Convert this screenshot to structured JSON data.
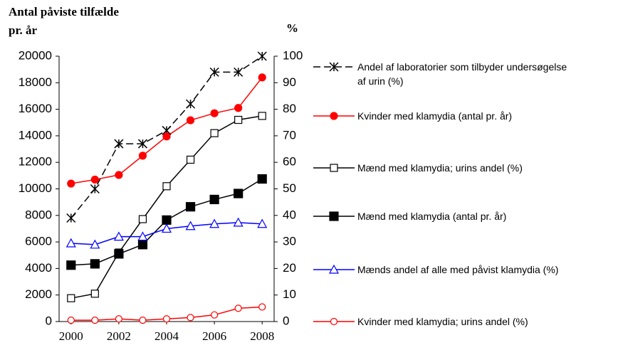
{
  "chart_data": {
    "type": "line",
    "title": "Antal påviste tilfælde pr. år",
    "y2_label": "%",
    "x": [
      2000,
      2001,
      2002,
      2003,
      2004,
      2005,
      2006,
      2007,
      2008
    ],
    "xlim": [
      1999.5,
      2008.5
    ],
    "xticks": [
      2000,
      2002,
      2004,
      2006,
      2008
    ],
    "ylim": [
      0,
      20000
    ],
    "yticks": [
      0,
      2000,
      4000,
      6000,
      8000,
      10000,
      12000,
      14000,
      16000,
      18000,
      20000
    ],
    "y2lim": [
      0,
      100
    ],
    "y2ticks": [
      0,
      10,
      20,
      30,
      40,
      50,
      60,
      70,
      80,
      90,
      100
    ],
    "grid": false,
    "series": [
      {
        "name": "Andel af laboratorier som tilbyder undersøgelse af urin (%)",
        "color": "#000000",
        "marker": "asterisk",
        "dashed": true,
        "axis": "y2",
        "values": [
          39,
          50,
          67,
          67,
          72,
          82,
          94,
          94,
          100
        ]
      },
      {
        "name": "Kvinder med klamydia (antal pr. år)",
        "color": "#ff0000",
        "marker": "filled-circle",
        "dashed": false,
        "values": [
          10400,
          10700,
          11050,
          12500,
          13950,
          15170,
          15700,
          16100,
          18400
        ]
      },
      {
        "name": "Mænd med klamydia; urins andel (%)",
        "color": "#000000",
        "marker": "open-square",
        "dashed": false,
        "axis": "y2",
        "values": [
          8.8,
          10.5,
          26,
          38.6,
          51,
          61,
          71,
          76,
          77.5
        ]
      },
      {
        "name": "Mænd med klamydia (antal pr. år)",
        "color": "#000000",
        "marker": "filled-square",
        "dashed": false,
        "values": [
          4250,
          4350,
          5100,
          5800,
          7650,
          8650,
          9200,
          9650,
          10750
        ]
      },
      {
        "name": "Mænds andel af alle med påvist klamydia (%)",
        "color": "#0000ff",
        "marker": "open-triangle",
        "dashed": false,
        "axis": "y2",
        "values": [
          29.5,
          29,
          32,
          32,
          35,
          36,
          36.8,
          37.3,
          36.8
        ]
      },
      {
        "name": "Kvinder med klamydia; urins andel (%)",
        "color": "#ff0000",
        "marker": "open-circle",
        "dashed": false,
        "axis": "y2",
        "values": [
          0.5,
          0.5,
          1,
          0.5,
          1,
          1.5,
          2.5,
          5,
          5.5
        ]
      }
    ]
  }
}
